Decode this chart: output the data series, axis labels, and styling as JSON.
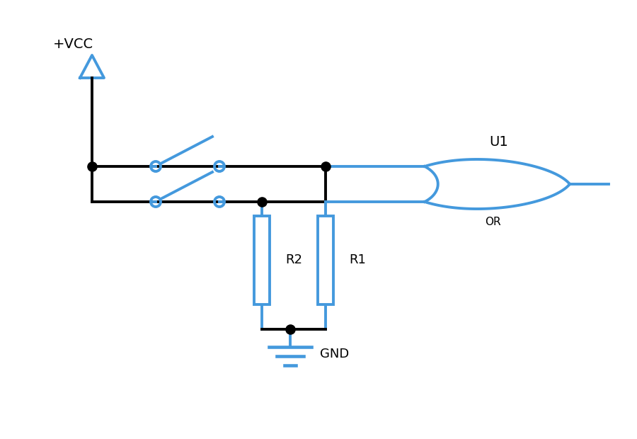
{
  "bg_color": "#ffffff",
  "wire_color": "#000000",
  "blue_color": "#4499dd",
  "dot_color": "#000000",
  "fig_width": 9.0,
  "fig_height": 6.2,
  "vcc_label": "+VCC",
  "gnd_label": "GND",
  "u1_label": "U1",
  "or_label": "OR",
  "r1_label": "R1",
  "r2_label": "R2",
  "lw_wire": 2.8,
  "lw_blue": 2.8,
  "dot_size": 90
}
